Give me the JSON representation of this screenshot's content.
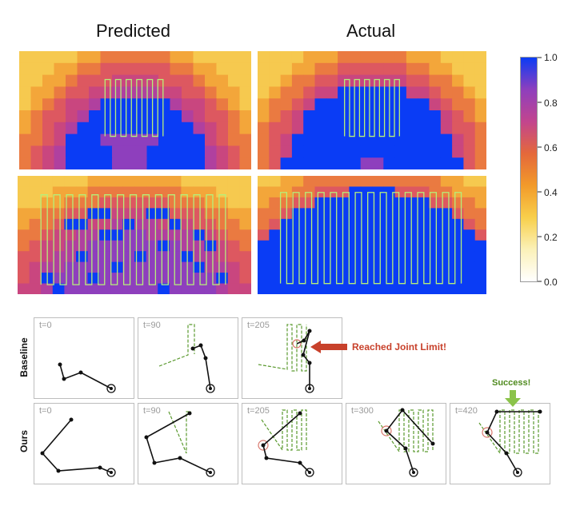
{
  "headers": {
    "predicted": "Predicted",
    "actual": "Actual"
  },
  "colorbar": {
    "ticks": [
      "1.0",
      "0.8",
      "0.6",
      "0.4",
      "0.2",
      "0.0"
    ],
    "stops": [
      "#0a3cf5",
      "#8e3fbd",
      "#c2458e",
      "#e4683b",
      "#f29a2a",
      "#f8cf4b",
      "#fbf1b8",
      "#ffffff"
    ]
  },
  "heatmap_colors": {
    "blue": "#0a3cf5",
    "ring0": "#8e3fbd",
    "ring1": "#b0409f",
    "ring2": "#c9467f",
    "ring3": "#dd5860",
    "ring4": "#ea7a41",
    "ring5": "#f3a63a",
    "ring6": "#f6c94f",
    "path": "#b6f07a"
  },
  "rows": {
    "baseline": "Baseline",
    "ours": "Ours"
  },
  "baseline_frames": [
    "t=0",
    "t=90",
    "t=205"
  ],
  "ours_frames": [
    "t=0",
    "t=90",
    "t=205",
    "t=300",
    "t=420"
  ],
  "annotations": {
    "joint_limit": "Reached Joint Limit!",
    "success": "Success!"
  },
  "annotation_colors": {
    "red": "#c8412b",
    "green": "#7cc04a"
  }
}
